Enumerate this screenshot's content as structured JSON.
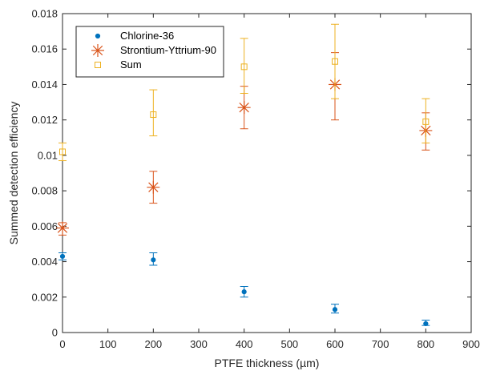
{
  "chart_data": {
    "type": "scatter",
    "xlabel": "PTFE thickness (µm)",
    "ylabel": "Summed detection efficiency",
    "xlim": [
      0,
      900
    ],
    "ylim": [
      0,
      0.018
    ],
    "xticks": [
      0,
      100,
      200,
      300,
      400,
      500,
      600,
      700,
      800,
      900
    ],
    "xtick_labels": [
      "0",
      "100",
      "200",
      "300",
      "400",
      "500",
      "600",
      "700",
      "800",
      "900"
    ],
    "yticks": [
      0,
      0.002,
      0.004,
      0.006,
      0.008,
      0.01,
      0.012,
      0.014,
      0.016,
      0.018
    ],
    "ytick_labels": [
      "0",
      "0.002",
      "0.004",
      "0.006",
      "0.008",
      "0.01",
      "0.012",
      "0.014",
      "0.016",
      "0.018"
    ],
    "grid": false,
    "legend_position": "top-left",
    "series": [
      {
        "name": "Chlorine-36",
        "marker": "dot",
        "color": "#0072BD",
        "x": [
          0,
          200,
          400,
          600,
          800
        ],
        "y": [
          0.0043,
          0.0041,
          0.0023,
          0.0013,
          0.0005
        ],
        "err_low": [
          0.0041,
          0.0038,
          0.002,
          0.0011,
          0.0004
        ],
        "err_high": [
          0.0045,
          0.0045,
          0.0026,
          0.0016,
          0.0007
        ]
      },
      {
        "name": "Strontium-Yttrium-90",
        "marker": "asterisk",
        "color": "#D95319",
        "x": [
          0,
          200,
          400,
          600,
          800
        ],
        "y": [
          0.0059,
          0.0082,
          0.0127,
          0.014,
          0.0114
        ],
        "err_low": [
          0.0055,
          0.0073,
          0.0115,
          0.012,
          0.0103
        ],
        "err_high": [
          0.0062,
          0.0091,
          0.0139,
          0.0158,
          0.0124
        ]
      },
      {
        "name": "Sum",
        "marker": "square",
        "color": "#EDB120",
        "x": [
          0,
          200,
          400,
          600,
          800
        ],
        "y": [
          0.0102,
          0.0123,
          0.015,
          0.0153,
          0.0119
        ],
        "err_low": [
          0.0097,
          0.0111,
          0.0135,
          0.0132,
          0.0107
        ],
        "err_high": [
          0.0107,
          0.0137,
          0.0166,
          0.0174,
          0.0132
        ]
      }
    ]
  }
}
